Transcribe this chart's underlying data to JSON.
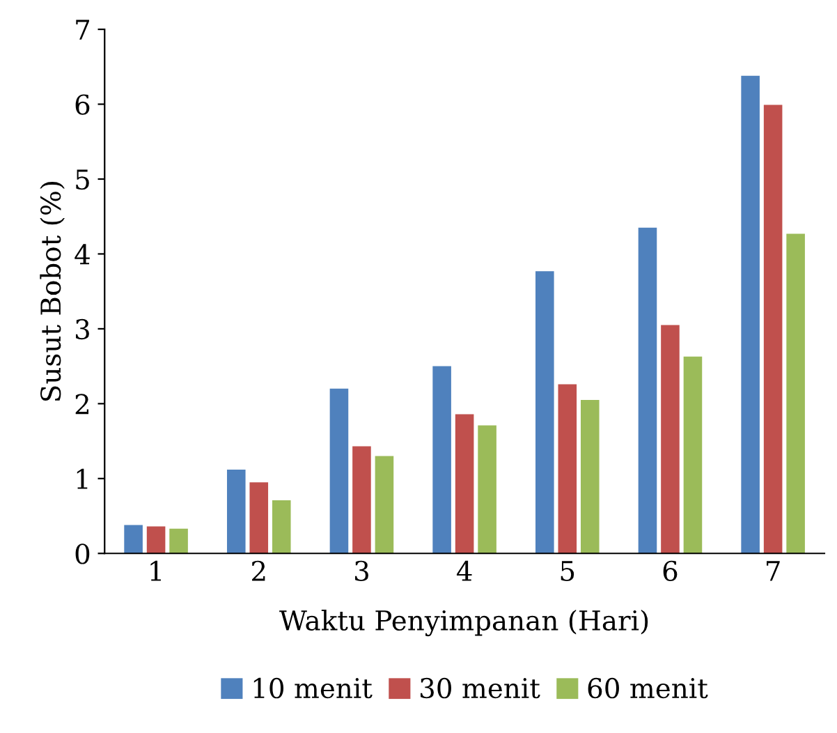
{
  "chart_data": {
    "type": "bar",
    "xlabel": "Waktu Penyimpanan (Hari)",
    "ylabel": "Susut Bobot (%)",
    "categories": [
      "1",
      "2",
      "3",
      "4",
      "5",
      "6",
      "7"
    ],
    "series": [
      {
        "name": "10 menit",
        "color": "#4f81bd",
        "values": [
          0.38,
          1.12,
          2.2,
          2.5,
          3.77,
          4.35,
          6.38
        ]
      },
      {
        "name": "30 menit",
        "color": "#c0504d",
        "values": [
          0.36,
          0.95,
          1.43,
          1.86,
          2.26,
          3.05,
          5.99
        ]
      },
      {
        "name": "60 menit",
        "color": "#9bbb59",
        "values": [
          0.33,
          0.71,
          1.3,
          1.71,
          2.05,
          2.63,
          4.27
        ]
      }
    ],
    "ylim": [
      0,
      7
    ],
    "yticks": [
      0,
      1,
      2,
      3,
      4,
      5,
      6,
      7
    ],
    "grid": false,
    "legend": "bottom"
  }
}
